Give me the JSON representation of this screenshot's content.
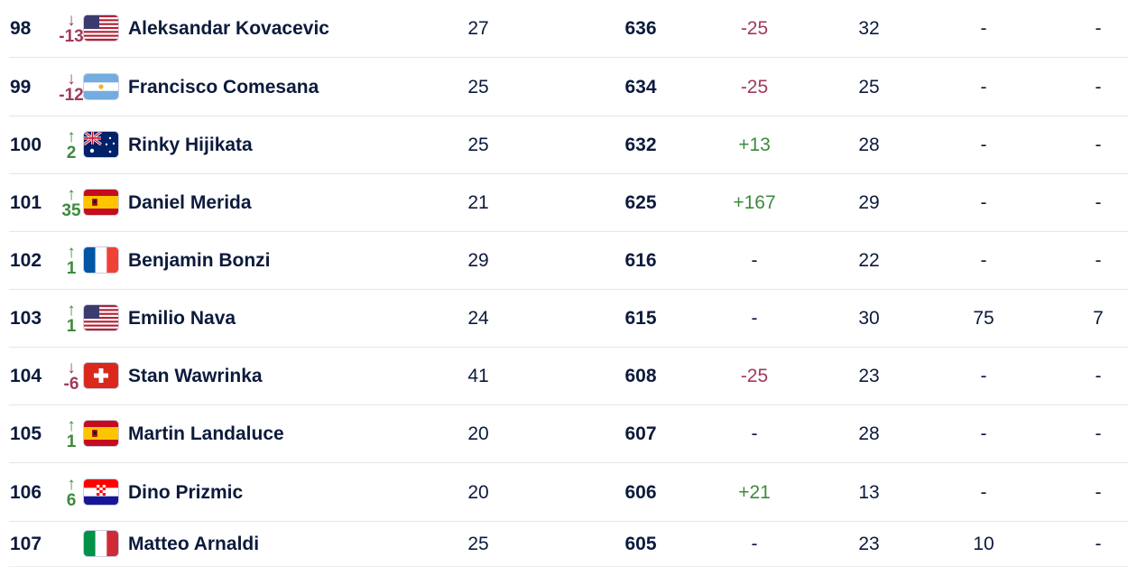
{
  "rankings": {
    "rows": [
      {
        "rank": "98",
        "move_dir": "down",
        "move": "-13",
        "flag": "usa-flag",
        "name": "Aleksandar Kovacevic",
        "age": "27",
        "points": "636",
        "delta": "-25",
        "delta_dir": "neg",
        "played": "32",
        "col7": "-",
        "col8": "-"
      },
      {
        "rank": "99",
        "move_dir": "down",
        "move": "-12",
        "flag": "argentina-flag",
        "name": "Francisco Comesana",
        "age": "25",
        "points": "634",
        "delta": "-25",
        "delta_dir": "neg",
        "played": "25",
        "col7": "-",
        "col8": "-"
      },
      {
        "rank": "100",
        "move_dir": "up",
        "move": "2",
        "flag": "australia-flag",
        "name": "Rinky Hijikata",
        "age": "25",
        "points": "632",
        "delta": "+13",
        "delta_dir": "pos",
        "played": "28",
        "col7": "-",
        "col8": "-"
      },
      {
        "rank": "101",
        "move_dir": "up",
        "move": "35",
        "flag": "spain-flag",
        "name": "Daniel Merida",
        "age": "21",
        "points": "625",
        "delta": "+167",
        "delta_dir": "pos",
        "played": "29",
        "col7": "-",
        "col8": "-"
      },
      {
        "rank": "102",
        "move_dir": "up",
        "move": "1",
        "flag": "france-flag",
        "name": "Benjamin Bonzi",
        "age": "29",
        "points": "616",
        "delta": "-",
        "delta_dir": "none",
        "played": "22",
        "col7": "-",
        "col8": "-"
      },
      {
        "rank": "103",
        "move_dir": "up",
        "move": "1",
        "flag": "usa-flag",
        "name": "Emilio Nava",
        "age": "24",
        "points": "615",
        "delta": "-",
        "delta_dir": "none",
        "played": "30",
        "col7": "75",
        "col8": "7"
      },
      {
        "rank": "104",
        "move_dir": "down",
        "move": "-6",
        "flag": "switzerland-flag",
        "name": "Stan Wawrinka",
        "age": "41",
        "points": "608",
        "delta": "-25",
        "delta_dir": "neg",
        "played": "23",
        "col7": "-",
        "col8": "-"
      },
      {
        "rank": "105",
        "move_dir": "up",
        "move": "1",
        "flag": "spain-flag",
        "name": "Martin Landaluce",
        "age": "20",
        "points": "607",
        "delta": "-",
        "delta_dir": "none",
        "played": "28",
        "col7": "-",
        "col8": "-"
      },
      {
        "rank": "106",
        "move_dir": "up",
        "move": "6",
        "flag": "croatia-flag",
        "name": "Dino Prizmic",
        "age": "20",
        "points": "606",
        "delta": "+21",
        "delta_dir": "pos",
        "played": "13",
        "col7": "-",
        "col8": "-"
      },
      {
        "rank": "107",
        "move_dir": "none",
        "move": "",
        "flag": "italy-flag",
        "name": "Matteo Arnaldi",
        "age": "25",
        "points": "605",
        "delta": "-",
        "delta_dir": "none",
        "played": "23",
        "col7": "10",
        "col8": "-"
      }
    ]
  },
  "colors": {
    "up": "#3d8a3d",
    "down": "#a03a5c",
    "text": "#0c1a3c",
    "separator": "#e6e6ea"
  }
}
